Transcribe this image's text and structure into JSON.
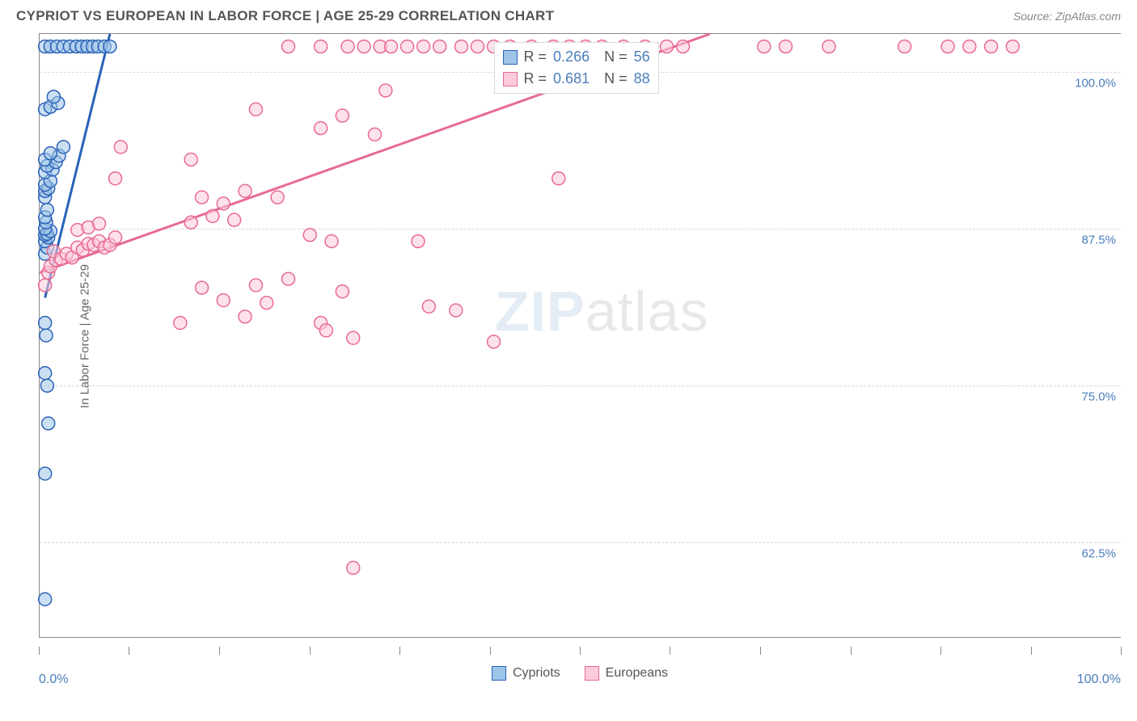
{
  "title": "CYPRIOT VS EUROPEAN IN LABOR FORCE | AGE 25-29 CORRELATION CHART",
  "source_label": "Source: ZipAtlas.com",
  "watermark_zip": "ZIP",
  "watermark_atlas": "atlas",
  "y_axis_title": "In Labor Force | Age 25-29",
  "chart": {
    "type": "scatter",
    "background_color": "#ffffff",
    "grid_color": "#d9d9d9",
    "axis_color": "#888888",
    "label_color": "#4a7ebb",
    "xlim": [
      0,
      100
    ],
    "ylim": [
      55,
      103
    ],
    "x_ticks_pct": [
      0,
      8.3,
      16.7,
      25,
      33.3,
      41.7,
      50,
      58.3,
      66.7,
      75,
      83.3,
      91.7,
      100
    ],
    "y_gridlines": [
      62.5,
      75.0,
      87.5,
      100.0
    ],
    "y_tick_labels": [
      "62.5%",
      "75.0%",
      "87.5%",
      "100.0%"
    ],
    "x_tick_labels": {
      "left": "0.0%",
      "right": "100.0%"
    },
    "marker_radius": 8,
    "marker_stroke_width": 1.5,
    "line_width": 3
  },
  "legend_bottom": [
    {
      "label": "Cypriots",
      "fill": "#9ec4e8",
      "stroke": "#2a62b8"
    },
    {
      "label": "Europeans",
      "fill": "#fbcbd9",
      "stroke": "#e86a92"
    }
  ],
  "corr_legend": [
    {
      "swatch_fill": "#9ec4e8",
      "swatch_stroke": "#2a62b8",
      "R": "0.266",
      "N": "56"
    },
    {
      "swatch_fill": "#fbcbd9",
      "swatch_stroke": "#e86a92",
      "R": "0.681",
      "N": "88"
    }
  ],
  "series": [
    {
      "name": "Cypriots",
      "fill": "#9ec4e8",
      "stroke": "#2a62b8",
      "trend": {
        "x1": 0.5,
        "y1": 82,
        "x2": 6.5,
        "y2": 103
      },
      "points": [
        [
          0.5,
          68
        ],
        [
          0.5,
          58
        ],
        [
          0.8,
          72
        ],
        [
          0.7,
          75
        ],
        [
          0.5,
          76
        ],
        [
          0.6,
          79
        ],
        [
          0.5,
          80
        ],
        [
          0.5,
          85.5
        ],
        [
          0.7,
          86
        ],
        [
          0.5,
          86.5
        ],
        [
          0.8,
          86.8
        ],
        [
          0.5,
          87
        ],
        [
          0.7,
          87.1
        ],
        [
          1.0,
          87.3
        ],
        [
          0.5,
          87.5
        ],
        [
          0.6,
          88
        ],
        [
          0.5,
          88.4
        ],
        [
          0.7,
          89
        ],
        [
          0.5,
          90
        ],
        [
          0.5,
          90.5
        ],
        [
          0.8,
          90.7
        ],
        [
          0.5,
          91
        ],
        [
          1.0,
          91.3
        ],
        [
          0.5,
          92
        ],
        [
          1.2,
          92.2
        ],
        [
          0.7,
          92.5
        ],
        [
          1.5,
          92.8
        ],
        [
          0.5,
          93
        ],
        [
          1.8,
          93.3
        ],
        [
          1.0,
          93.5
        ],
        [
          2.2,
          94
        ],
        [
          0.5,
          97
        ],
        [
          1.0,
          97.2
        ],
        [
          1.7,
          97.5
        ],
        [
          1.3,
          98
        ],
        [
          0.5,
          102
        ],
        [
          1.0,
          102
        ],
        [
          1.6,
          102
        ],
        [
          2.2,
          102
        ],
        [
          2.8,
          102
        ],
        [
          3.4,
          102
        ],
        [
          3.9,
          102
        ],
        [
          4.4,
          102
        ],
        [
          4.9,
          102
        ],
        [
          5.4,
          102
        ],
        [
          6.0,
          102
        ],
        [
          6.5,
          102
        ]
      ]
    },
    {
      "name": "Europeans",
      "fill": "#fbcbd9",
      "stroke": "#e86a92",
      "trend": {
        "x1": 0,
        "y1": 84,
        "x2": 62,
        "y2": 103
      },
      "points": [
        [
          29,
          60.5
        ],
        [
          0.5,
          83
        ],
        [
          0.8,
          84
        ],
        [
          1.0,
          84.5
        ],
        [
          1.5,
          85
        ],
        [
          1.3,
          85.7
        ],
        [
          2,
          85.1
        ],
        [
          2.5,
          85.5
        ],
        [
          3,
          85.2
        ],
        [
          3.5,
          86
        ],
        [
          4,
          85.8
        ],
        [
          4.5,
          86.3
        ],
        [
          5,
          86.2
        ],
        [
          5.5,
          86.5
        ],
        [
          6,
          86
        ],
        [
          6.5,
          86.2
        ],
        [
          7,
          86.8
        ],
        [
          3.5,
          87.4
        ],
        [
          4.5,
          87.6
        ],
        [
          5.5,
          87.9
        ],
        [
          13,
          80
        ],
        [
          15,
          82.8
        ],
        [
          17,
          81.8
        ],
        [
          19,
          80.5
        ],
        [
          20,
          83
        ],
        [
          21,
          81.6
        ],
        [
          23,
          83.5
        ],
        [
          26,
          80
        ],
        [
          26.5,
          79.4
        ],
        [
          28,
          82.5
        ],
        [
          29,
          78.8
        ],
        [
          36,
          81.3
        ],
        [
          38.5,
          81
        ],
        [
          42,
          78.5
        ],
        [
          14,
          88
        ],
        [
          16,
          88.5
        ],
        [
          18,
          88.2
        ],
        [
          15,
          90
        ],
        [
          17,
          89.5
        ],
        [
          19,
          90.5
        ],
        [
          22,
          90
        ],
        [
          25,
          87
        ],
        [
          27,
          86.5
        ],
        [
          14,
          93
        ],
        [
          7.5,
          94
        ],
        [
          7,
          91.5
        ],
        [
          35,
          86.5
        ],
        [
          20,
          97
        ],
        [
          26,
          95.5
        ],
        [
          28,
          96.5
        ],
        [
          31,
          95
        ],
        [
          48,
          91.5
        ],
        [
          32,
          98.5
        ],
        [
          80,
          102
        ],
        [
          23,
          102
        ],
        [
          26,
          102
        ],
        [
          28.5,
          102
        ],
        [
          30,
          102
        ],
        [
          31.5,
          102
        ],
        [
          32.5,
          102
        ],
        [
          34,
          102
        ],
        [
          35.5,
          102
        ],
        [
          37,
          102
        ],
        [
          39,
          102
        ],
        [
          40.5,
          102
        ],
        [
          42,
          102
        ],
        [
          43.5,
          102
        ],
        [
          45.5,
          102
        ],
        [
          47.5,
          102
        ],
        [
          49,
          102
        ],
        [
          50.5,
          102
        ],
        [
          52,
          102
        ],
        [
          54,
          102
        ],
        [
          56,
          102
        ],
        [
          58,
          102
        ],
        [
          59.5,
          102
        ],
        [
          67,
          102
        ],
        [
          69,
          102
        ],
        [
          73,
          102
        ],
        [
          84,
          102
        ],
        [
          86,
          102
        ],
        [
          88,
          102
        ],
        [
          90,
          102
        ]
      ]
    }
  ]
}
